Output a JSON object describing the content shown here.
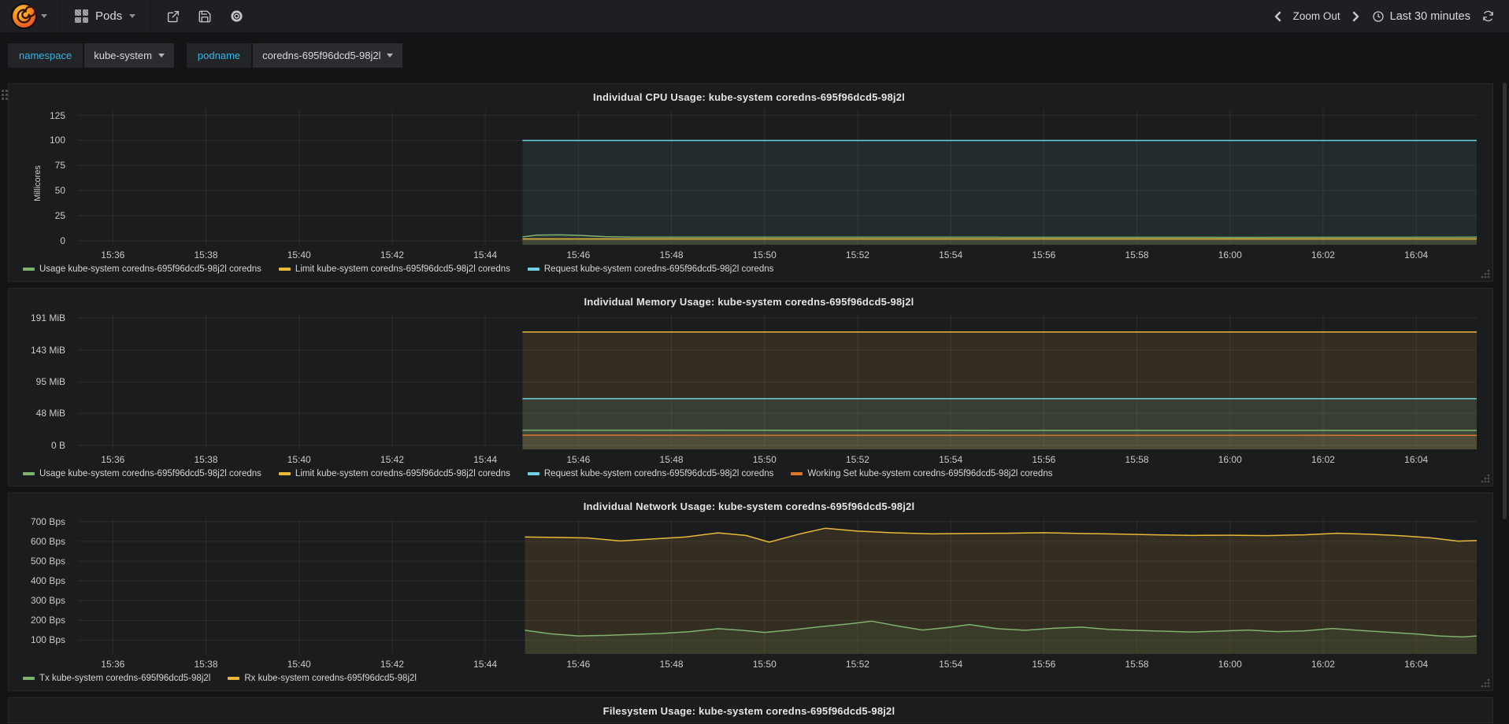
{
  "navbar": {
    "dashboard_title": "Pods",
    "zoom_out_label": "Zoom Out",
    "time_range_label": "Last 30 minutes"
  },
  "variables": [
    {
      "label": "namespace",
      "value": "kube-system"
    },
    {
      "label": "podname",
      "value": "coredns-695f96dcd5-98j2l"
    }
  ],
  "colors": {
    "green": "#7eb26d",
    "yellow": "#eab839",
    "cyan": "#6ed0e0",
    "orange": "#e0752d",
    "accent_cyan": "#33b5e5"
  },
  "chart_data": [
    {
      "id": "cpu",
      "type": "line",
      "title": "Individual CPU Usage: kube-system coredns-695f96dcd5-98j2l",
      "ylabel": "Millicores",
      "x_range": [
        35.25,
        65.3
      ],
      "y_range": [
        -4,
        131
      ],
      "x_ticks": [
        {
          "t": 36,
          "label": "15:36"
        },
        {
          "t": 38,
          "label": "15:38"
        },
        {
          "t": 40,
          "label": "15:40"
        },
        {
          "t": 42,
          "label": "15:42"
        },
        {
          "t": 44,
          "label": "15:44"
        },
        {
          "t": 46,
          "label": "15:46"
        },
        {
          "t": 48,
          "label": "15:48"
        },
        {
          "t": 50,
          "label": "15:50"
        },
        {
          "t": 52,
          "label": "15:52"
        },
        {
          "t": 54,
          "label": "15:54"
        },
        {
          "t": 56,
          "label": "15:56"
        },
        {
          "t": 58,
          "label": "15:58"
        },
        {
          "t": 60,
          "label": "16:00"
        },
        {
          "t": 62,
          "label": "16:02"
        },
        {
          "t": 64,
          "label": "16:04"
        }
      ],
      "y_ticks": [
        {
          "v": 0,
          "label": "0"
        },
        {
          "v": 25,
          "label": "25"
        },
        {
          "v": 50,
          "label": "50"
        },
        {
          "v": 75,
          "label": "75"
        },
        {
          "v": 100,
          "label": "100"
        },
        {
          "v": 125,
          "label": "125"
        }
      ],
      "series": [
        {
          "name": "Usage",
          "legend": "Usage kube-system coredns-695f96dcd5-98j2l coredns",
          "color": "#7eb26d",
          "fill": 0.1,
          "points": [
            [
              44.8,
              3.8
            ],
            [
              45.1,
              5.6
            ],
            [
              45.6,
              5.9
            ],
            [
              46.1,
              5.2
            ],
            [
              46.6,
              4.0
            ],
            [
              47.2,
              3.6
            ],
            [
              50,
              3.5
            ],
            [
              55,
              3.5
            ],
            [
              60,
              3.4
            ],
            [
              65.3,
              3.5
            ]
          ]
        },
        {
          "name": "Limit",
          "legend": "Limit kube-system coredns-695f96dcd5-98j2l coredns",
          "color": "#eab839",
          "fill": 0.1,
          "points": [
            [
              44.8,
              1.8
            ],
            [
              65.3,
              1.8
            ]
          ]
        },
        {
          "name": "Request",
          "legend": "Request kube-system coredns-695f96dcd5-98j2l coredns",
          "color": "#6ed0e0",
          "fill": 0.09,
          "points": [
            [
              44.8,
              100
            ],
            [
              65.3,
              100
            ]
          ]
        }
      ]
    },
    {
      "id": "memory",
      "type": "line",
      "title": "Individual Memory Usage: kube-system coredns-695f96dcd5-98j2l",
      "x_range": [
        35.25,
        65.3
      ],
      "y_range": [
        -6,
        197
      ],
      "x_ticks": [
        {
          "t": 36,
          "label": "15:36"
        },
        {
          "t": 38,
          "label": "15:38"
        },
        {
          "t": 40,
          "label": "15:40"
        },
        {
          "t": 42,
          "label": "15:42"
        },
        {
          "t": 44,
          "label": "15:44"
        },
        {
          "t": 46,
          "label": "15:46"
        },
        {
          "t": 48,
          "label": "15:48"
        },
        {
          "t": 50,
          "label": "15:50"
        },
        {
          "t": 52,
          "label": "15:52"
        },
        {
          "t": 54,
          "label": "15:54"
        },
        {
          "t": 56,
          "label": "15:56"
        },
        {
          "t": 58,
          "label": "15:58"
        },
        {
          "t": 60,
          "label": "16:00"
        },
        {
          "t": 62,
          "label": "16:02"
        },
        {
          "t": 64,
          "label": "16:04"
        }
      ],
      "y_ticks": [
        {
          "v": 0,
          "label": "0 B"
        },
        {
          "v": 48,
          "label": "48 MiB"
        },
        {
          "v": 95,
          "label": "95 MiB"
        },
        {
          "v": 143,
          "label": "143 MiB"
        },
        {
          "v": 191,
          "label": "191 MiB"
        }
      ],
      "series": [
        {
          "name": "Usage",
          "legend": "Usage kube-system coredns-695f96dcd5-98j2l coredns",
          "color": "#7eb26d",
          "fill": 0.1,
          "points": [
            [
              44.8,
              22.8
            ],
            [
              52,
              22.6
            ],
            [
              58,
              22.4
            ],
            [
              65.3,
              22.4
            ]
          ]
        },
        {
          "name": "Limit",
          "legend": "Limit kube-system coredns-695f96dcd5-98j2l coredns",
          "color": "#eab839",
          "fill": 0.12,
          "points": [
            [
              44.8,
              170
            ],
            [
              65.3,
              170
            ]
          ]
        },
        {
          "name": "Request",
          "legend": "Request kube-system coredns-695f96dcd5-98j2l coredns",
          "color": "#6ed0e0",
          "fill": 0.1,
          "points": [
            [
              44.8,
              70
            ],
            [
              65.3,
              70
            ]
          ]
        },
        {
          "name": "Working Set",
          "legend": "Working Set kube-system coredns-695f96dcd5-98j2l coredns",
          "color": "#e0752d",
          "fill": 0.1,
          "points": [
            [
              44.8,
              15.2
            ],
            [
              65.3,
              15.0
            ]
          ]
        }
      ]
    },
    {
      "id": "network",
      "type": "line",
      "title": "Individual Network Usage: kube-system coredns-695f96dcd5-98j2l",
      "x_range": [
        35.25,
        65.3
      ],
      "y_range": [
        30,
        715
      ],
      "x_ticks": [
        {
          "t": 36,
          "label": "15:36"
        },
        {
          "t": 38,
          "label": "15:38"
        },
        {
          "t": 40,
          "label": "15:40"
        },
        {
          "t": 42,
          "label": "15:42"
        },
        {
          "t": 44,
          "label": "15:44"
        },
        {
          "t": 46,
          "label": "15:46"
        },
        {
          "t": 48,
          "label": "15:48"
        },
        {
          "t": 50,
          "label": "15:50"
        },
        {
          "t": 52,
          "label": "15:52"
        },
        {
          "t": 54,
          "label": "15:54"
        },
        {
          "t": 56,
          "label": "15:56"
        },
        {
          "t": 58,
          "label": "15:58"
        },
        {
          "t": 60,
          "label": "16:00"
        },
        {
          "t": 62,
          "label": "16:02"
        },
        {
          "t": 64,
          "label": "16:04"
        }
      ],
      "y_ticks": [
        {
          "v": 100,
          "label": "100 Bps"
        },
        {
          "v": 200,
          "label": "200 Bps"
        },
        {
          "v": 300,
          "label": "300 Bps"
        },
        {
          "v": 400,
          "label": "400 Bps"
        },
        {
          "v": 500,
          "label": "500 Bps"
        },
        {
          "v": 600,
          "label": "600 Bps"
        },
        {
          "v": 700,
          "label": "700 Bps"
        }
      ],
      "series": [
        {
          "name": "Tx",
          "legend": "Tx kube-system coredns-695f96dcd5-98j2l",
          "color": "#7eb26d",
          "fill": 0.1,
          "points": [
            [
              44.85,
              150
            ],
            [
              45.4,
              132
            ],
            [
              46.0,
              121
            ],
            [
              46.6,
              124
            ],
            [
              47.2,
              129
            ],
            [
              47.8,
              134
            ],
            [
              48.4,
              143
            ],
            [
              49.0,
              158
            ],
            [
              49.5,
              150
            ],
            [
              50.0,
              139
            ],
            [
              50.6,
              152
            ],
            [
              51.2,
              168
            ],
            [
              51.8,
              182
            ],
            [
              52.3,
              196
            ],
            [
              52.9,
              170
            ],
            [
              53.4,
              151
            ],
            [
              54.0,
              166
            ],
            [
              54.4,
              179
            ],
            [
              55.0,
              158
            ],
            [
              55.6,
              150
            ],
            [
              56.2,
              160
            ],
            [
              56.8,
              166
            ],
            [
              57.4,
              154
            ],
            [
              58.0,
              149
            ],
            [
              58.6,
              145
            ],
            [
              59.2,
              141
            ],
            [
              59.8,
              146
            ],
            [
              60.4,
              151
            ],
            [
              61.0,
              143
            ],
            [
              61.6,
              147
            ],
            [
              62.2,
              159
            ],
            [
              62.8,
              149
            ],
            [
              63.4,
              140
            ],
            [
              64.0,
              131
            ],
            [
              64.5,
              121
            ],
            [
              65.0,
              116
            ],
            [
              65.3,
              121
            ]
          ]
        },
        {
          "name": "Rx",
          "legend": "Rx kube-system coredns-695f96dcd5-98j2l",
          "color": "#eab839",
          "fill": 0.12,
          "points": [
            [
              44.85,
              622
            ],
            [
              45.5,
              620
            ],
            [
              46.2,
              617
            ],
            [
              46.9,
              602
            ],
            [
              47.6,
              612
            ],
            [
              48.3,
              622
            ],
            [
              49.0,
              643
            ],
            [
              49.6,
              630
            ],
            [
              50.1,
              596
            ],
            [
              50.8,
              640
            ],
            [
              51.3,
              666
            ],
            [
              52.0,
              652
            ],
            [
              52.8,
              643
            ],
            [
              53.6,
              638
            ],
            [
              54.4,
              640
            ],
            [
              55.2,
              641
            ],
            [
              56.0,
              644
            ],
            [
              56.8,
              640
            ],
            [
              57.6,
              637
            ],
            [
              58.4,
              633
            ],
            [
              59.2,
              630
            ],
            [
              60.0,
              631
            ],
            [
              60.8,
              629
            ],
            [
              61.6,
              633
            ],
            [
              62.3,
              641
            ],
            [
              63.0,
              636
            ],
            [
              63.7,
              628
            ],
            [
              64.3,
              618
            ],
            [
              64.9,
              601
            ],
            [
              65.3,
              604
            ]
          ]
        }
      ]
    },
    {
      "id": "filesystem",
      "type": "line",
      "partial": true,
      "title": "Filesystem Usage: kube-system coredns-695f96dcd5-98j2l"
    }
  ]
}
